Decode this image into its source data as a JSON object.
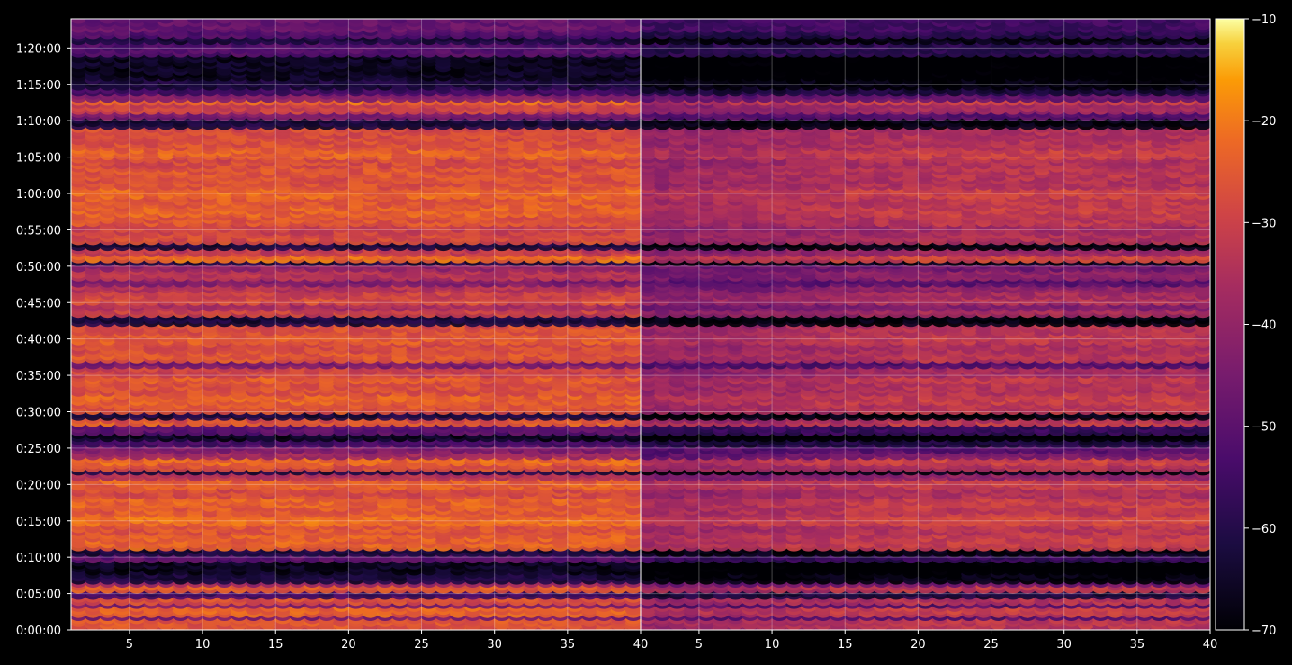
{
  "chart_data": {
    "type": "heatmap",
    "title": "",
    "xlabel": "",
    "ylabel": "",
    "panels": [
      {
        "name": "",
        "x_range": [
          1,
          40
        ],
        "x_ticks": [
          5,
          10,
          15,
          20,
          25,
          30,
          35,
          40
        ]
      },
      {
        "name": "",
        "x_range": [
          1,
          40
        ],
        "x_ticks": [
          5,
          10,
          15,
          20,
          25,
          30,
          35,
          40
        ]
      }
    ],
    "y_range_seconds": [
      0,
      5040
    ],
    "y_ticks": [
      {
        "value": 0,
        "label": "0:00:00"
      },
      {
        "value": 300,
        "label": "0:05:00"
      },
      {
        "value": 600,
        "label": "0:10:00"
      },
      {
        "value": 900,
        "label": "0:15:00"
      },
      {
        "value": 1200,
        "label": "0:20:00"
      },
      {
        "value": 1500,
        "label": "0:25:00"
      },
      {
        "value": 1800,
        "label": "0:30:00"
      },
      {
        "value": 2100,
        "label": "0:35:00"
      },
      {
        "value": 2400,
        "label": "0:40:00"
      },
      {
        "value": 2700,
        "label": "0:45:00"
      },
      {
        "value": 3000,
        "label": "0:50:00"
      },
      {
        "value": 3300,
        "label": "0:55:00"
      },
      {
        "value": 3600,
        "label": "1:00:00"
      },
      {
        "value": 3900,
        "label": "1:05:00"
      },
      {
        "value": 4200,
        "label": "1:10:00"
      },
      {
        "value": 4500,
        "label": "1:15:00"
      },
      {
        "value": 4800,
        "label": "1:20:00"
      }
    ],
    "colorbar": {
      "colormap": "inferno",
      "range": [
        -70,
        -10
      ],
      "ticks": [
        -10,
        -20,
        -30,
        -40,
        -50,
        -60,
        -70
      ],
      "tick_labels": [
        "−10",
        "−20",
        "−30",
        "−40",
        "−50",
        "−60",
        "−70"
      ]
    },
    "grid": true,
    "level_profile": {
      "description_units": "value in colorbar units vs time (seconds)",
      "segments_seconds": [
        [
          0,
          30,
          -28
        ],
        [
          30,
          90,
          -26
        ],
        [
          90,
          120,
          -45
        ],
        [
          120,
          190,
          -24
        ],
        [
          190,
          230,
          -45
        ],
        [
          230,
          270,
          -27
        ],
        [
          270,
          320,
          -55
        ],
        [
          320,
          380,
          -25
        ],
        [
          380,
          400,
          -40
        ],
        [
          400,
          470,
          -62
        ],
        [
          470,
          570,
          -66
        ],
        [
          570,
          630,
          -50
        ],
        [
          630,
          680,
          -62
        ],
        [
          680,
          800,
          -24
        ],
        [
          800,
          880,
          -26
        ],
        [
          880,
          960,
          -22
        ],
        [
          960,
          1020,
          -25
        ],
        [
          1020,
          1100,
          -24
        ],
        [
          1100,
          1180,
          -28
        ],
        [
          1180,
          1240,
          -24
        ],
        [
          1240,
          1290,
          -34
        ],
        [
          1290,
          1320,
          -62
        ],
        [
          1320,
          1370,
          -27
        ],
        [
          1370,
          1420,
          -23
        ],
        [
          1420,
          1470,
          -38
        ],
        [
          1470,
          1530,
          -44
        ],
        [
          1530,
          1580,
          -55
        ],
        [
          1580,
          1620,
          -66
        ],
        [
          1620,
          1690,
          -50
        ],
        [
          1690,
          1730,
          -24
        ],
        [
          1730,
          1760,
          -28
        ],
        [
          1760,
          1800,
          -62
        ],
        [
          1800,
          1880,
          -26
        ],
        [
          1880,
          1960,
          -24
        ],
        [
          1960,
          2040,
          -27
        ],
        [
          2040,
          2110,
          -25
        ],
        [
          2110,
          2180,
          -30
        ],
        [
          2180,
          2220,
          -45
        ],
        [
          2220,
          2300,
          -26
        ],
        [
          2300,
          2380,
          -28
        ],
        [
          2380,
          2450,
          -25
        ],
        [
          2450,
          2530,
          -27
        ],
        [
          2530,
          2590,
          -62
        ],
        [
          2590,
          2650,
          -30
        ],
        [
          2650,
          2700,
          -36
        ],
        [
          2700,
          2760,
          -28
        ],
        [
          2760,
          2800,
          -30
        ],
        [
          2800,
          2860,
          -34
        ],
        [
          2860,
          2900,
          -44
        ],
        [
          2900,
          2980,
          -34
        ],
        [
          2980,
          3020,
          -40
        ],
        [
          3020,
          3060,
          -62
        ],
        [
          3060,
          3110,
          -22
        ],
        [
          3110,
          3160,
          -32
        ],
        [
          3160,
          3200,
          -62
        ],
        [
          3200,
          3280,
          -28
        ],
        [
          3280,
          3340,
          -30
        ],
        [
          3340,
          3420,
          -26
        ],
        [
          3420,
          3500,
          -24
        ],
        [
          3500,
          3580,
          -25
        ],
        [
          3580,
          3660,
          -23
        ],
        [
          3660,
          3740,
          -27
        ],
        [
          3740,
          3820,
          -26
        ],
        [
          3820,
          3900,
          -28
        ],
        [
          3900,
          3980,
          -24
        ],
        [
          3980,
          4060,
          -27
        ],
        [
          4060,
          4160,
          -28
        ],
        [
          4160,
          4220,
          -62
        ],
        [
          4220,
          4280,
          -44
        ],
        [
          4280,
          4340,
          -30
        ],
        [
          4340,
          4380,
          -22
        ],
        [
          4380,
          4430,
          -42
        ],
        [
          4430,
          4480,
          -55
        ],
        [
          4480,
          4540,
          -62
        ],
        [
          4540,
          4760,
          -66
        ],
        [
          4760,
          4860,
          -52
        ],
        [
          4860,
          4900,
          -62
        ],
        [
          4900,
          4960,
          -52
        ],
        [
          4960,
          5040,
          -48
        ]
      ]
    }
  }
}
